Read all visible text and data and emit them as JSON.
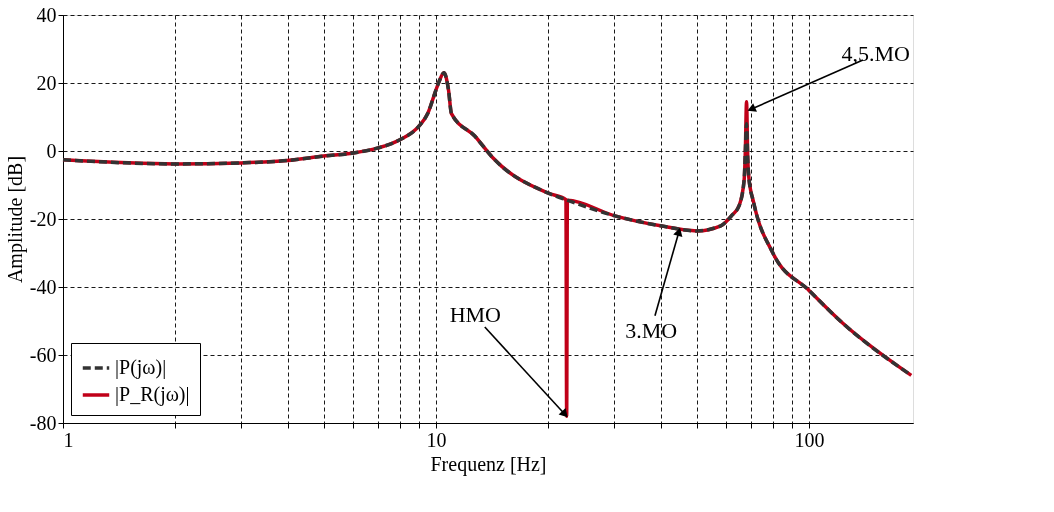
{
  "chart_data": {
    "type": "line",
    "xlabel": "Frequenz [Hz]",
    "ylabel": "Amplitude [dB]",
    "log": "x",
    "xlim": [
      1,
      190
    ],
    "ylim": [
      -80,
      40
    ],
    "xticks": [
      1,
      {
        "value": 2,
        "label": null
      },
      {
        "value": 3,
        "label": null
      },
      {
        "value": 4,
        "label": null
      },
      {
        "value": 5,
        "label": null
      },
      {
        "value": 6,
        "label": null
      },
      {
        "value": 7,
        "label": null
      },
      {
        "value": 8,
        "label": null
      },
      {
        "value": 9,
        "label": null
      },
      10,
      {
        "value": 20,
        "label": null
      },
      {
        "value": 30,
        "label": null
      },
      {
        "value": 40,
        "label": null
      },
      {
        "value": 50,
        "label": null
      },
      {
        "value": 60,
        "label": null
      },
      {
        "value": 70,
        "label": null
      },
      {
        "value": 80,
        "label": null
      },
      {
        "value": 90,
        "label": null
      },
      100
    ],
    "yticks": [
      -80,
      -60,
      -40,
      -20,
      0,
      20,
      40
    ],
    "grid": true,
    "legend": "bottom left",
    "series": [
      {
        "name": "|P_R(jω)|",
        "color": "#c00018",
        "line_style": "solid",
        "x": [
          1,
          2,
          3,
          4,
          5,
          6,
          7,
          8,
          9,
          9.5,
          10,
          10.2,
          10.5,
          10.8,
          11,
          12.7,
          14.2,
          20,
          22.3,
          22.4,
          22.5,
          30,
          40,
          50,
          58,
          62,
          65,
          67,
          67.5,
          68,
          68.5,
          69,
          71,
          80,
          100,
          123,
          188
        ],
        "values": [
          -2.6,
          -3.8,
          -3.5,
          -2.8,
          -1.5,
          -0.6,
          0.9,
          3.3,
          7.3,
          11,
          18,
          20.5,
          23,
          18,
          11,
          4.4,
          -2,
          -12.4,
          -14.3,
          -78,
          -14.5,
          -19,
          -22,
          -23.5,
          -22,
          -19,
          -16,
          -8.5,
          0,
          14.5,
          -2,
          -8,
          -15,
          -30,
          -41,
          -50.6,
          -66
        ]
      },
      {
        "name": "|P(jω)|",
        "color": "#333333",
        "line_style": "dashed",
        "x": [
          1,
          2,
          3,
          4,
          5,
          6,
          7,
          8,
          9,
          9.5,
          10,
          10.2,
          10.5,
          10.8,
          11,
          12.7,
          14.2,
          20,
          22.4,
          30,
          40,
          50,
          58,
          62,
          65,
          67,
          67.5,
          68,
          68.5,
          69,
          71,
          80,
          100,
          123,
          188
        ],
        "values": [
          -2.6,
          -3.8,
          -3.5,
          -2.8,
          -1.5,
          -0.6,
          0.9,
          3.3,
          7.3,
          11,
          18,
          20.5,
          23,
          18,
          11,
          4.4,
          -2,
          -12.4,
          -14.4,
          -19,
          -22,
          -23.5,
          -22,
          -19,
          -16,
          -8.5,
          0,
          8,
          -2,
          -8,
          -15,
          -30,
          -41,
          -50.6,
          -66
        ]
      }
    ],
    "annotations": [
      {
        "text": "HMO",
        "x": 22.4,
        "y": -78
      },
      {
        "text": "3.MO",
        "x": 45,
        "y": -23
      },
      {
        "text": "4,5.MO",
        "x": 69,
        "y": 12
      }
    ]
  }
}
